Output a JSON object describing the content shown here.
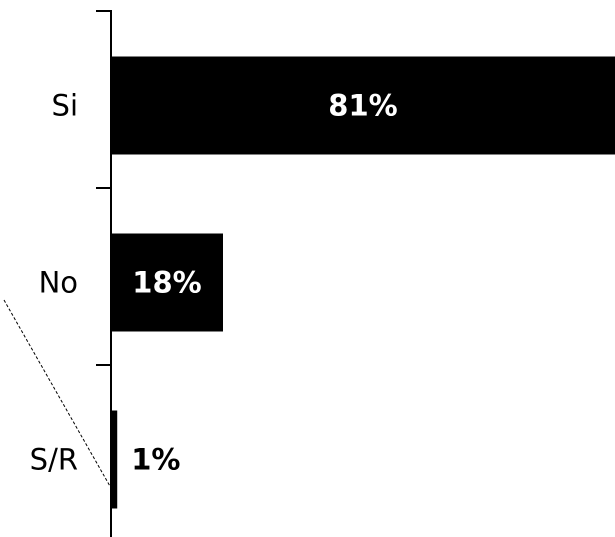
{
  "chart_data": {
    "type": "bar",
    "orientation": "horizontal",
    "categories": [
      "Si",
      "No",
      "S/R"
    ],
    "values": [
      81,
      18,
      1
    ],
    "value_labels": [
      "81%",
      "18%",
      "1%"
    ],
    "unit": "%",
    "xlim": [
      0,
      81
    ],
    "bar_color": "#000000",
    "title": "",
    "xlabel": "",
    "ylabel": "",
    "grid": false,
    "legend": "none"
  }
}
